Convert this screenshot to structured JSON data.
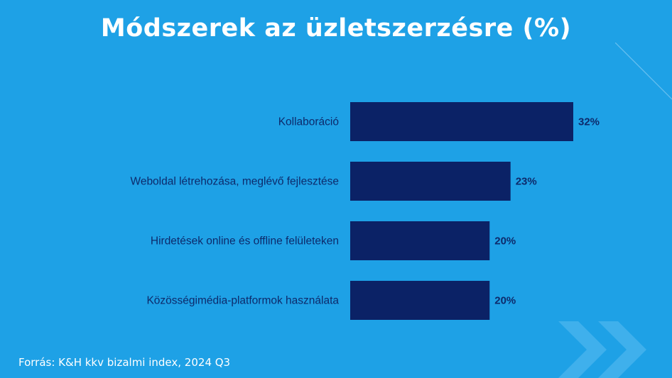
{
  "chart_data": {
    "type": "bar",
    "orientation": "horizontal",
    "title": "Módszerek az üzletszerzésre (%)",
    "categories": [
      "Kollaboráció",
      "Weboldal létrehozása, meglévő fejlesztése",
      "Hirdetések online és offline felületeken",
      "Közösségimédia-platformok használata"
    ],
    "values": [
      32,
      23,
      20,
      20
    ],
    "value_labels": [
      "32%",
      "23%",
      "20%",
      "20%"
    ],
    "xlim": [
      0,
      32
    ],
    "grid": false,
    "legend": "none",
    "bar_color": "#0b2266"
  },
  "footer": {
    "source": "Forrás: K&H kkv bizalmi index, 2024 Q3"
  },
  "colors": {
    "background": "#1ea1e6",
    "bar": "#0b2266",
    "label": "#0d2a6b",
    "title": "#ffffff"
  }
}
